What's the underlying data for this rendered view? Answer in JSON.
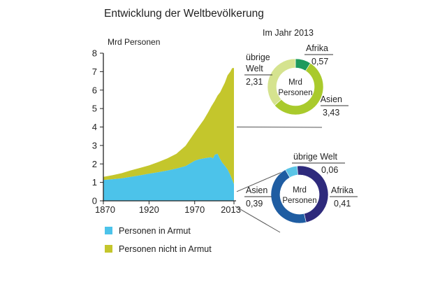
{
  "chart_data": [
    {
      "type": "area",
      "title": "Entwicklung der Weltbevölkerung",
      "ylabel": "Mrd Personen",
      "xlabel": "",
      "ylim": [
        0,
        8
      ],
      "xlim": [
        1870,
        2013
      ],
      "yticks": [
        "0",
        "1",
        "2",
        "3",
        "4",
        "5",
        "6",
        "7",
        "8"
      ],
      "xticks": [
        "1870",
        "1920",
        "1970",
        "2013"
      ],
      "stacked": true,
      "grid": false,
      "legend_position": "bottom",
      "x": [
        1870,
        1880,
        1890,
        1900,
        1910,
        1920,
        1930,
        1940,
        1950,
        1960,
        1970,
        1975,
        1980,
        1985,
        1988,
        1990,
        1992,
        1995,
        1998,
        2000,
        2003,
        2006,
        2009,
        2011,
        2013
      ],
      "series": [
        {
          "name": "Personen in Armut",
          "color": "#4cc3ea",
          "values": [
            1.13,
            1.17,
            1.22,
            1.3,
            1.38,
            1.47,
            1.55,
            1.64,
            1.75,
            1.88,
            2.17,
            2.25,
            2.3,
            2.34,
            2.36,
            2.3,
            2.5,
            2.55,
            2.25,
            2.08,
            1.9,
            1.7,
            1.4,
            1.15,
            0.9
          ]
        },
        {
          "name": "Personen nicht in Armut",
          "color": "#c4c62c",
          "values": [
            0.17,
            0.22,
            0.28,
            0.35,
            0.4,
            0.45,
            0.55,
            0.66,
            0.8,
            1.1,
            1.53,
            1.8,
            2.1,
            2.48,
            2.74,
            2.96,
            2.92,
            3.15,
            3.64,
            4.02,
            4.5,
            5.1,
            5.6,
            6.04,
            6.3
          ]
        }
      ]
    },
    {
      "type": "pie",
      "title": "Im Jahr 2013",
      "center_label": "Mrd Personen",
      "center_lines": [
        "Mrd",
        "Personen"
      ],
      "slices": [
        {
          "name": "Afrika",
          "value": 0.57,
          "color": "#1e9a5c"
        },
        {
          "name": "Asien",
          "value": 3.43,
          "color": "#a9ca2c"
        },
        {
          "name": "übrige Welt",
          "value": 2.31,
          "color": "#d5e38f"
        }
      ],
      "labels": [
        {
          "lines": [
            "Afrika"
          ],
          "value": "0,57"
        },
        {
          "lines": [
            "Asien"
          ],
          "value": "3,43"
        },
        {
          "lines": [
            "übrige",
            "Welt"
          ],
          "value": "2,31"
        }
      ]
    },
    {
      "type": "pie",
      "title": "",
      "center_label": "Mrd Personen",
      "center_lines": [
        "Mrd",
        "Personen"
      ],
      "slices": [
        {
          "name": "übrige Welt",
          "value": 0.06,
          "color": "#5bc4e6"
        },
        {
          "name": "Afrika",
          "value": 0.41,
          "color": "#2e2a7c"
        },
        {
          "name": "Asien",
          "value": 0.39,
          "color": "#1f5da2"
        }
      ],
      "labels": [
        {
          "lines": [
            "übrige Welt"
          ],
          "value": "0,06"
        },
        {
          "lines": [
            "Afrika"
          ],
          "value": "0,41"
        },
        {
          "lines": [
            "Asien"
          ],
          "value": "0,39"
        }
      ]
    }
  ]
}
